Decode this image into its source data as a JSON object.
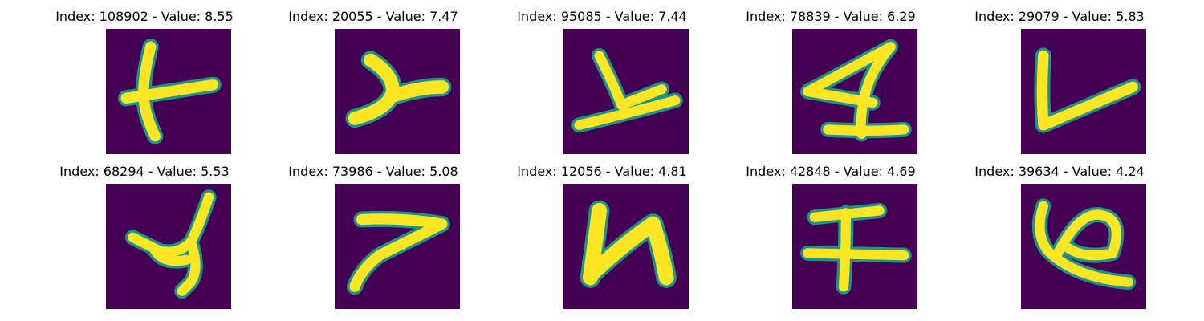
{
  "figure": {
    "grid_rows": 2,
    "grid_cols": 5,
    "colormap": {
      "name": "viridis",
      "background": "#440154",
      "edge": "#21918c",
      "stroke": "#fde725"
    },
    "panels": [
      {
        "index": "108902",
        "value": "8.55",
        "glyph": "stroke-t",
        "title": "Index: 108902 - Value: 8.55"
      },
      {
        "index": "20055",
        "value": "7.47",
        "glyph": "stroke-y-right",
        "title": "Index: 20055 - Value: 7.47"
      },
      {
        "index": "95085",
        "value": "7.44",
        "glyph": "stroke-y",
        "title": "Index: 95085 - Value: 7.44"
      },
      {
        "index": "78839",
        "value": "6.29",
        "glyph": "stroke-a",
        "title": "Index: 78839 - Value: 6.29"
      },
      {
        "index": "29079",
        "value": "5.83",
        "glyph": "stroke-l",
        "title": "Index: 29079 - Value: 5.83"
      },
      {
        "index": "68294",
        "value": "5.53",
        "glyph": "stroke-y-curl",
        "title": "Index: 68294 - Value: 5.53"
      },
      {
        "index": "73986",
        "value": "5.08",
        "glyph": "stroke-7",
        "title": "Index: 73986 - Value: 5.08"
      },
      {
        "index": "12056",
        "value": "4.81",
        "glyph": "stroke-n",
        "title": "Index: 12056 - Value: 4.81"
      },
      {
        "index": "42848",
        "value": "4.69",
        "glyph": "stroke-cross",
        "title": "Index: 42848 - Value: 4.69"
      },
      {
        "index": "39634",
        "value": "4.24",
        "glyph": "stroke-loop",
        "title": "Index: 39634 - Value: 4.24"
      }
    ]
  }
}
